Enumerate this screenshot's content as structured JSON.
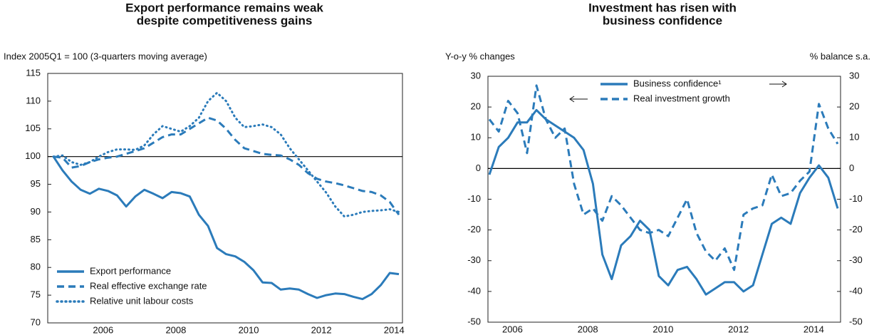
{
  "chart_data": [
    {
      "type": "line",
      "title": [
        "Export performance remains weak",
        "despite competitiveness gains"
      ],
      "ylabel": "Index 2005Q1 = 100 (3-quarters moving average)",
      "categories": [
        null,
        null,
        null,
        null,
        null,
        "2006",
        null,
        null,
        null,
        null,
        null,
        null,
        null,
        "2008",
        null,
        null,
        null,
        null,
        null,
        null,
        null,
        "2010",
        null,
        null,
        null,
        null,
        null,
        null,
        null,
        "2012",
        null,
        null,
        null,
        null,
        null,
        null,
        null,
        "2014",
        null
      ],
      "ylim": [
        70,
        115
      ],
      "yticks": [
        70,
        75,
        80,
        85,
        90,
        95,
        100,
        105,
        110,
        115
      ],
      "hline": 100,
      "legend": "lower left",
      "series": [
        {
          "name": "Export performance",
          "color": "#2b7bba",
          "style": "solid",
          "values": [
            100,
            97.5,
            95.5,
            94,
            93.3,
            94.2,
            93.8,
            93,
            91,
            92.8,
            94,
            93.3,
            92.5,
            93.6,
            93.4,
            92.8,
            89.5,
            87.5,
            83.5,
            82.4,
            82,
            81,
            79.5,
            77.3,
            77.2,
            76,
            76.2,
            76,
            75.2,
            74.5,
            75,
            75.3,
            75.2,
            74.7,
            74.3,
            75.2,
            76.8,
            79,
            78.8
          ]
        },
        {
          "name": "Real effective exchange rate",
          "color": "#2b7bba",
          "style": "dashed",
          "values": [
            100,
            99.8,
            98,
            98.3,
            99,
            99.5,
            99.8,
            100,
            100.5,
            101,
            101.5,
            102.5,
            103.5,
            104,
            104,
            105,
            106,
            107,
            106.5,
            105,
            103,
            101.5,
            101,
            100.5,
            100.3,
            100.2,
            99.5,
            98.5,
            97,
            96,
            95.5,
            95.2,
            94.8,
            94.3,
            93.8,
            93.6,
            93,
            91.8,
            89.5
          ]
        },
        {
          "name": "Relative unit labour costs",
          "color": "#2b7bba",
          "style": "dotted",
          "values": [
            100,
            100.2,
            99,
            98.5,
            99,
            100,
            100.8,
            101.3,
            101.3,
            101.2,
            102,
            104,
            105.5,
            105,
            104.5,
            105.5,
            107,
            110,
            111.5,
            110,
            107,
            105.3,
            105.5,
            105.8,
            105.3,
            104,
            101.5,
            99.5,
            97.5,
            95.5,
            93.5,
            91,
            89.2,
            89.5,
            90,
            90.2,
            90.3,
            90.5,
            90
          ]
        }
      ]
    },
    {
      "type": "line",
      "title": [
        "Investment has risen with",
        "business confidence"
      ],
      "ylabel": "Y-o-y % changes",
      "y2label": "% balance s.a.",
      "categories": [
        null,
        null,
        "2006",
        null,
        null,
        null,
        null,
        null,
        null,
        null,
        "2008",
        null,
        null,
        null,
        null,
        null,
        null,
        null,
        "2010",
        null,
        null,
        null,
        null,
        null,
        null,
        null,
        "2012",
        null,
        null,
        null,
        null,
        null,
        null,
        null,
        "2014",
        null,
        null,
        null
      ],
      "ylim": [
        -50,
        30
      ],
      "yticks": [
        -50,
        -40,
        -30,
        -20,
        -10,
        0,
        10,
        20,
        30
      ],
      "y2lim": [
        -50,
        30
      ],
      "y2ticks": [
        -50,
        -40,
        -30,
        -20,
        -10,
        0,
        10,
        20,
        30
      ],
      "hline": 0,
      "legend": "upper center",
      "series": [
        {
          "name": "Business confidence¹",
          "color": "#2b7bba",
          "style": "solid",
          "axis": "y2",
          "values": [
            -2,
            7,
            10,
            15,
            15,
            19,
            16,
            14,
            12,
            10,
            6,
            -5,
            -28,
            -36,
            -25,
            -22,
            -17,
            -20,
            -35,
            -38,
            -33,
            -32,
            -36,
            -41,
            -39,
            -37,
            -37,
            -40,
            -38,
            -28,
            -18,
            -16,
            -18,
            -8,
            -3,
            1,
            -3,
            -13
          ]
        },
        {
          "name": "Real investment growth",
          "color": "#2b7bba",
          "style": "dashed",
          "values": [
            16,
            12,
            22,
            18,
            5,
            27,
            16,
            10,
            13,
            -5,
            -15,
            -13,
            -17,
            -9,
            -12,
            -16,
            -20,
            -21,
            -20,
            -22,
            -16,
            -10,
            -21,
            -27,
            -30,
            -26,
            -33,
            -15,
            -13,
            -12,
            -2,
            -9,
            -8,
            -4,
            -1,
            21,
            13,
            8
          ]
        }
      ]
    }
  ]
}
